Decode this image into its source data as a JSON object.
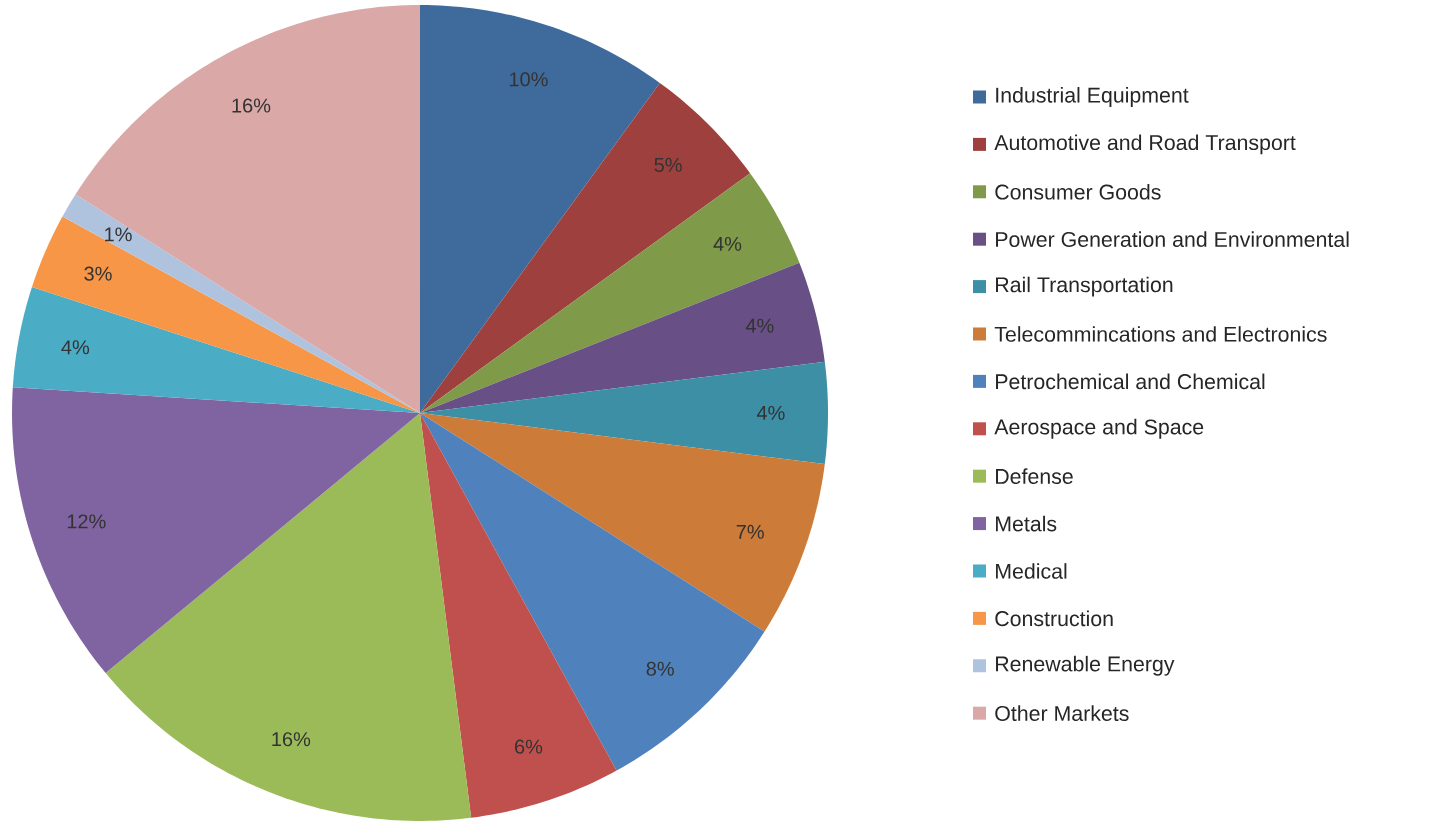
{
  "chart_data": {
    "type": "pie",
    "categories": [
      "Industrial Equipment",
      "Automotive and Road Transport",
      "Consumer Goods",
      "Power Generation and Environmental",
      "Rail Transportation",
      "Telecommincations and Electronics",
      "Petrochemical and Chemical",
      "Aerospace and Space",
      "Defense",
      "Metals",
      "Medical",
      "Construction",
      "Renewable Energy",
      "Other Markets"
    ],
    "values": [
      10,
      5,
      4,
      4,
      4,
      7,
      8,
      6,
      16,
      12,
      4,
      3,
      1,
      16
    ],
    "value_labels": [
      "10%",
      "5%",
      "4%",
      "4%",
      "4%",
      "7%",
      "8%",
      "6%",
      "16%",
      "12%",
      "4%",
      "3%",
      "1%",
      "16%"
    ],
    "colors": [
      "#3F6A9C",
      "#9E413E",
      "#7F9A48",
      "#684F86",
      "#3D8FA5",
      "#CC7B38",
      "#4F81BD",
      "#C0504D",
      "#9BBB59",
      "#8064A2",
      "#4BACC6",
      "#F79646",
      "#AFC3DE",
      "#D9A8A7"
    ],
    "legend": "right"
  }
}
